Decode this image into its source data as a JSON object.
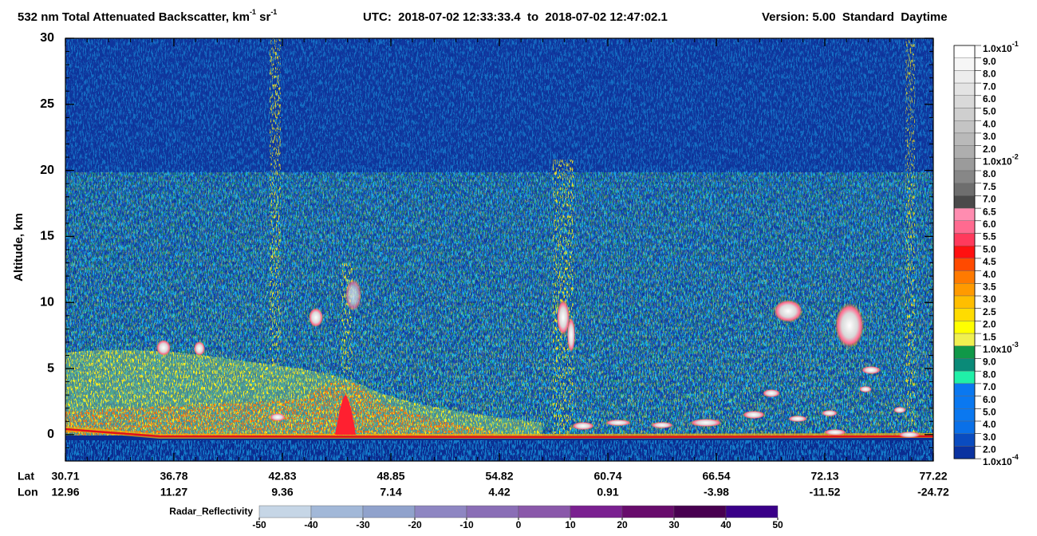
{
  "chart_data": {
    "type": "heatmap",
    "title_parts": [
      {
        "text": "532 nm Total Attenuated Backscatter, km"
      },
      {
        "sup": "-1"
      },
      {
        "text": " sr"
      },
      {
        "sup": "-1"
      }
    ],
    "subtitle": "UTC:  2018-07-02 12:33:33.4  to  2018-07-02 12:47:02.1",
    "version": "Version: 5.00  Standard  Daytime",
    "y_label": "Altitude, km",
    "ylim": [
      -2,
      30
    ],
    "yticks": [
      0,
      5,
      10,
      15,
      20,
      25,
      30
    ],
    "x_rows": [
      {
        "name": "Lat",
        "labels": [
          30.71,
          36.78,
          42.83,
          48.85,
          54.82,
          60.74,
          66.54,
          72.13,
          77.22
        ]
      },
      {
        "name": "Lon",
        "labels": [
          12.96,
          11.27,
          9.36,
          7.14,
          4.42,
          0.91,
          -3.98,
          -11.52,
          -24.72
        ]
      }
    ],
    "colorbar": {
      "labels": [
        {
          "text": "1.0x10",
          "sup": "-1"
        },
        "9.0",
        "8.0",
        "7.0",
        "6.0",
        "5.0",
        "4.0",
        "3.0",
        "2.0",
        {
          "text": "1.0x10",
          "sup": "-2"
        },
        "8.0",
        "7.5",
        "7.0",
        "6.5",
        "6.0",
        "5.5",
        "5.0",
        "4.5",
        "4.0",
        "3.5",
        "3.0",
        "2.5",
        "2.0",
        "1.5",
        {
          "text": "1.0x10",
          "sup": "-3"
        },
        "9.0",
        "8.0",
        "7.0",
        "6.0",
        "5.0",
        "4.0",
        "3.0",
        "2.0",
        {
          "text": "1.0x10",
          "sup": "-4"
        }
      ],
      "colors": [
        "#ffffff",
        "#f6f6f6",
        "#ededed",
        "#e3e3e3",
        "#d9d9d9",
        "#cfcfcf",
        "#c4c4c4",
        "#b9b9b9",
        "#aeaeae",
        "#9b9b9b",
        "#878787",
        "#6e6e6e",
        "#4a4a4a",
        "#ff8cb0",
        "#ff6a90",
        "#ff3a5c",
        "#ff1010",
        "#ff4a00",
        "#ff7a00",
        "#ff9a00",
        "#ffbe00",
        "#ffdc00",
        "#ffff00",
        "#f0f050",
        "#109848",
        "#0a8a78",
        "#20f0a8",
        "#0a78f0",
        "#0a78f0",
        "#0a78f0",
        "#0a70e8",
        "#0a4cc0",
        "#0a32a0"
      ]
    },
    "radar_colorbar": {
      "label": "Radar_Reflectivity",
      "ticks": [
        -50,
        -40,
        -30,
        -20,
        -10,
        0,
        10,
        20,
        30,
        40,
        50
      ],
      "colors": [
        "#c6d6e6",
        "#a2b8d8",
        "#90a2cc",
        "#8e86c2",
        "#8a6eb6",
        "#8a58aa",
        "#7a2090",
        "#680c6c",
        "#480050",
        "#3a0088"
      ]
    }
  }
}
